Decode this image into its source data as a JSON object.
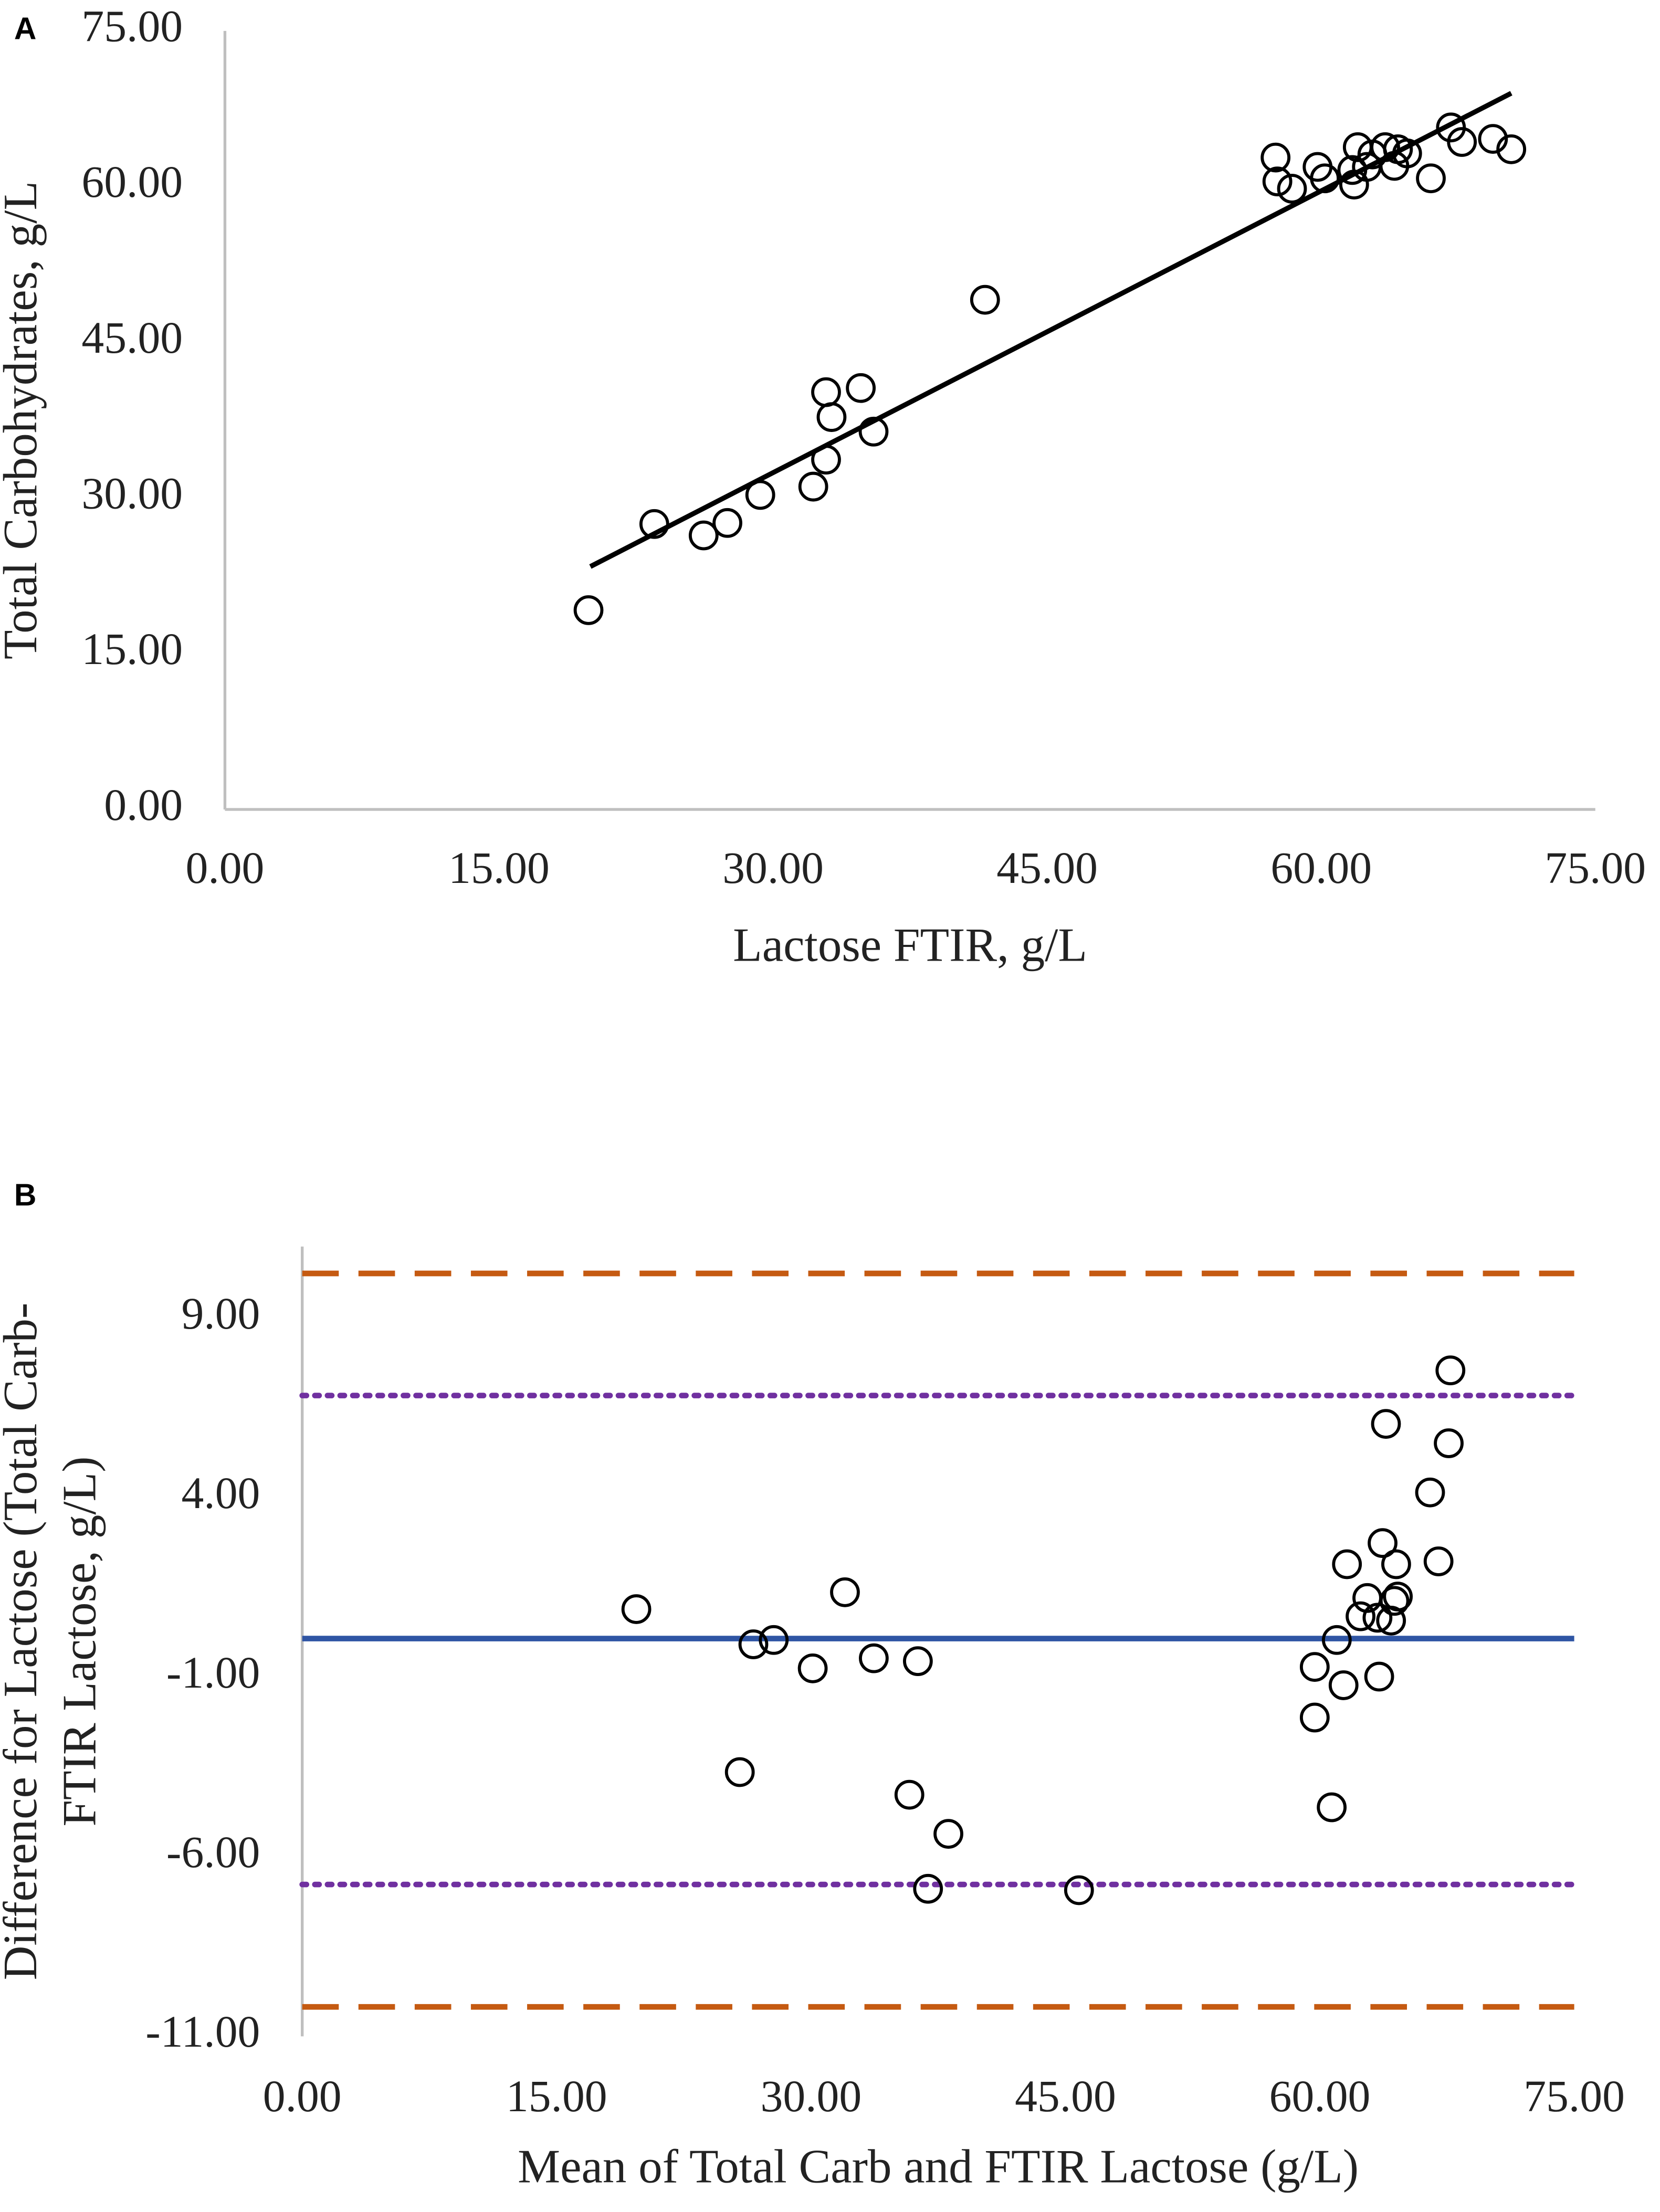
{
  "chart_data": [
    {
      "type": "scatter",
      "panel": "A",
      "xlabel": "Lactose FTIR, g/L",
      "ylabel": [
        "Total Carbohydrates, g/L"
      ],
      "xlim": [
        0,
        75
      ],
      "ylim": [
        0,
        75
      ],
      "xticks": [
        {
          "value": 0,
          "label": "0.00"
        },
        {
          "value": 15,
          "label": "15.00"
        },
        {
          "value": 30,
          "label": "30.00"
        },
        {
          "value": 45,
          "label": "45.00"
        },
        {
          "value": 60,
          "label": "60.00"
        },
        {
          "value": 75,
          "label": "75.00"
        }
      ],
      "yticks": [
        {
          "value": 0,
          "label": "0.00"
        },
        {
          "value": 15,
          "label": "15.00"
        },
        {
          "value": 30,
          "label": "30.00"
        },
        {
          "value": 45,
          "label": "45.00"
        },
        {
          "value": 60,
          "label": "60.00"
        },
        {
          "value": 75,
          "label": "75.00"
        }
      ],
      "series": [
        {
          "color": "#000000",
          "x": [
            19.9,
            23.5,
            26.2,
            27.5,
            29.3,
            32.2,
            32.9,
            33.2,
            32.9,
            34.8,
            35.5,
            41.6,
            57.5,
            57.6,
            58.4,
            59.8,
            60.2,
            61.7,
            61.8,
            62.0,
            62.5,
            62.8,
            63.5,
            64.0,
            64.2,
            64.7,
            66.0,
            67.1,
            67.7,
            69.4,
            70.4
          ],
          "values": [
            19.2,
            27.5,
            26.4,
            27.6,
            30.3,
            31.1,
            40.2,
            37.8,
            33.7,
            40.6,
            36.4,
            49.1,
            62.8,
            60.5,
            59.8,
            61.9,
            60.8,
            61.6,
            60.2,
            63.8,
            61.9,
            63.1,
            63.8,
            62.0,
            63.6,
            63.2,
            60.8,
            65.7,
            64.3,
            64.6,
            63.6
          ]
        }
      ],
      "trendline": {
        "x": [
          20,
          70.4
        ],
        "values": [
          23.4,
          69.0
        ],
        "color": "#000000"
      },
      "axis_color": "#bfbfbf",
      "x_axis_line": true
    },
    {
      "type": "scatter",
      "panel": "B",
      "xlabel": "Mean of Total Carb and FTIR Lactose (g/L)",
      "ylabel": [
        "Difference for Lactose (Total Carb-",
        "FTIR Lactose, g/L)"
      ],
      "xlim": [
        0,
        75
      ],
      "ylim": [
        -11,
        11
      ],
      "xticks": [
        {
          "value": 0,
          "label": "0.00"
        },
        {
          "value": 15,
          "label": "15.00"
        },
        {
          "value": 30,
          "label": "30.00"
        },
        {
          "value": 45,
          "label": "45.00"
        },
        {
          "value": 60,
          "label": "60.00"
        },
        {
          "value": 75,
          "label": "75.00"
        }
      ],
      "yticks": [
        {
          "value": 9,
          "label": "9.00"
        },
        {
          "value": 4,
          "label": "4.00"
        },
        {
          "value": -1,
          "label": "-1.00"
        },
        {
          "value": -6,
          "label": "-6.00"
        },
        {
          "value": -11,
          "label": "-11.00"
        }
      ],
      "series": [
        {
          "color": "#000000",
          "x": [
            19.7,
            25.8,
            26.6,
            27.8,
            30.1,
            32.0,
            33.7,
            35.8,
            36.3,
            36.9,
            38.1,
            45.8,
            59.7,
            59.7,
            60.7,
            61.0,
            61.4,
            61.6,
            62.4,
            62.8,
            63.4,
            63.5,
            63.7,
            63.9,
            64.2,
            64.4,
            64.5,
            64.6,
            66.5,
            67.0,
            67.6,
            67.7
          ],
          "values": [
            0.9,
            -3.64,
            -0.08,
            0.04,
            -0.75,
            1.37,
            -0.47,
            -4.27,
            -0.55,
            -6.89,
            -5.36,
            -6.93,
            -2.12,
            -0.71,
            -4.62,
            0.04,
            -1.22,
            2.15,
            0.7,
            1.21,
            0.66,
            -0.98,
            2.74,
            6.06,
            0.58,
            1.13,
            2.15,
            1.25,
            4.15,
            2.23,
            5.52,
            7.55
          ]
        }
      ],
      "hlines": [
        {
          "value": 10.25,
          "color": "#c55a11",
          "style": "dashed"
        },
        {
          "value": 6.85,
          "color": "#7030a0",
          "style": "dotted"
        },
        {
          "value": 0.08,
          "color": "#2f55a4",
          "style": "solid"
        },
        {
          "value": -6.77,
          "color": "#7030a0",
          "style": "dotted"
        },
        {
          "value": -10.18,
          "color": "#c55a11",
          "style": "dashed"
        }
      ],
      "axis_color": "#bfbfbf",
      "x_axis_line": false
    }
  ]
}
